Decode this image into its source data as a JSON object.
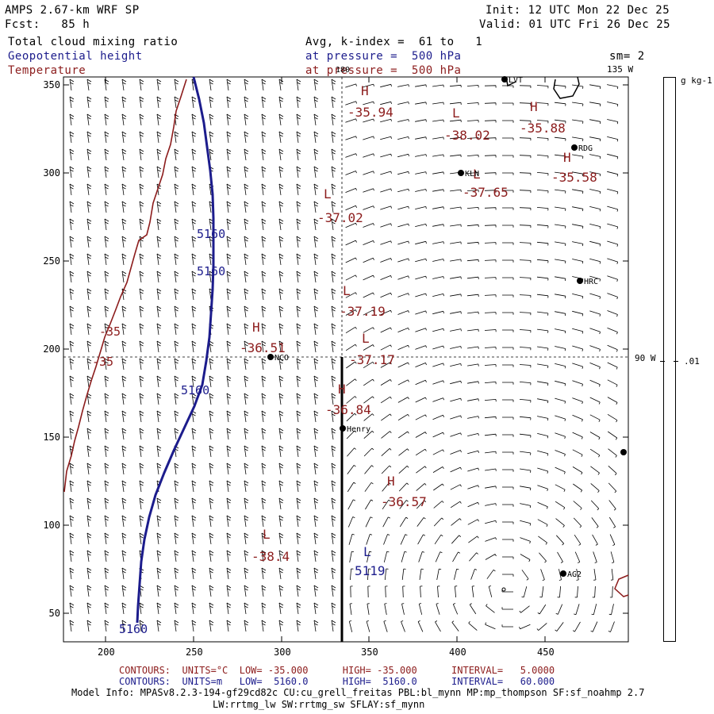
{
  "header": {
    "title": "AMPS 2.67-km WRF SP",
    "fcst": "Fcst:   85 h",
    "init": "Init: 12 UTC Mon 22 Dec 25",
    "valid": "Valid: 01 UTC Fri 26 Dec 25",
    "field1": "Total cloud mixing ratio",
    "field2": "Geopotential height",
    "field3": "Temperature",
    "avg_line": "Avg, k-index =  61 to   1",
    "pressure1": "at pressure =  500 hPa",
    "pressure2": "at pressure =  500 hPa",
    "sm": "sm= 2"
  },
  "map": {
    "x_ticks": [
      "200",
      "250",
      "300",
      "350",
      "400",
      "450"
    ],
    "y_ticks": [
      "350",
      "300",
      "250",
      "200",
      "150",
      "100",
      "50"
    ],
    "meridian_top": "180",
    "meridian_topright": "135 W",
    "meridian_right": "90 W",
    "stations": [
      {
        "name": "LVT"
      },
      {
        "name": "RDG"
      },
      {
        "name": "KLN"
      },
      {
        "name": "HRC"
      },
      {
        "name": "NCO"
      },
      {
        "name": "Henry"
      },
      {
        "name": "AG2"
      }
    ],
    "temp_labels": [
      {
        "kind": "H",
        "value": "-35.94"
      },
      {
        "kind": "L",
        "value": "-38.02"
      },
      {
        "kind": "H",
        "value": "-35.88"
      },
      {
        "kind": "H",
        "value": "-35.58"
      },
      {
        "kind": "L",
        "value": "-37.65"
      },
      {
        "kind": "L",
        "value": "-37.02"
      },
      {
        "kind": "L",
        "value": "-37.19"
      },
      {
        "kind": "H",
        "value": "-36.51"
      },
      {
        "kind": "L",
        "value": "-37.17"
      },
      {
        "kind": "H",
        "value": "-36.84"
      },
      {
        "kind": "H",
        "value": "-36.57"
      },
      {
        "kind": "L",
        "value": "-38.4"
      }
    ],
    "contour_labels": {
      "temp": "-35",
      "height": "5160"
    },
    "height_low": {
      "kind": "L",
      "value": "5119"
    }
  },
  "colorbar": {
    "unit": "g kg-1",
    "tick": ".01"
  },
  "footer": {
    "red_contours": "CONTOURS:  UNITS=°C  LOW= -35.000      HIGH= -35.000      INTERVAL=   5.0000",
    "blue_contours": "CONTOURS:  UNITS=m   LOW=  5160.0      HIGH=  5160.0      INTERVAL=   60.000",
    "model_info": "Model Info: MPASv8.2.3-194-gf29cd82c CU:cu_grell_freitas PBL:bl_mynn MP:mp_thompson SF:sf_noahmp 2.7",
    "model_info2": "LW:rrtmg_lw SW:rrtmg_sw SFLAY:sf_mynn"
  },
  "colors": {
    "temperature": "#8c1c1c",
    "height": "#1c1c8c"
  }
}
